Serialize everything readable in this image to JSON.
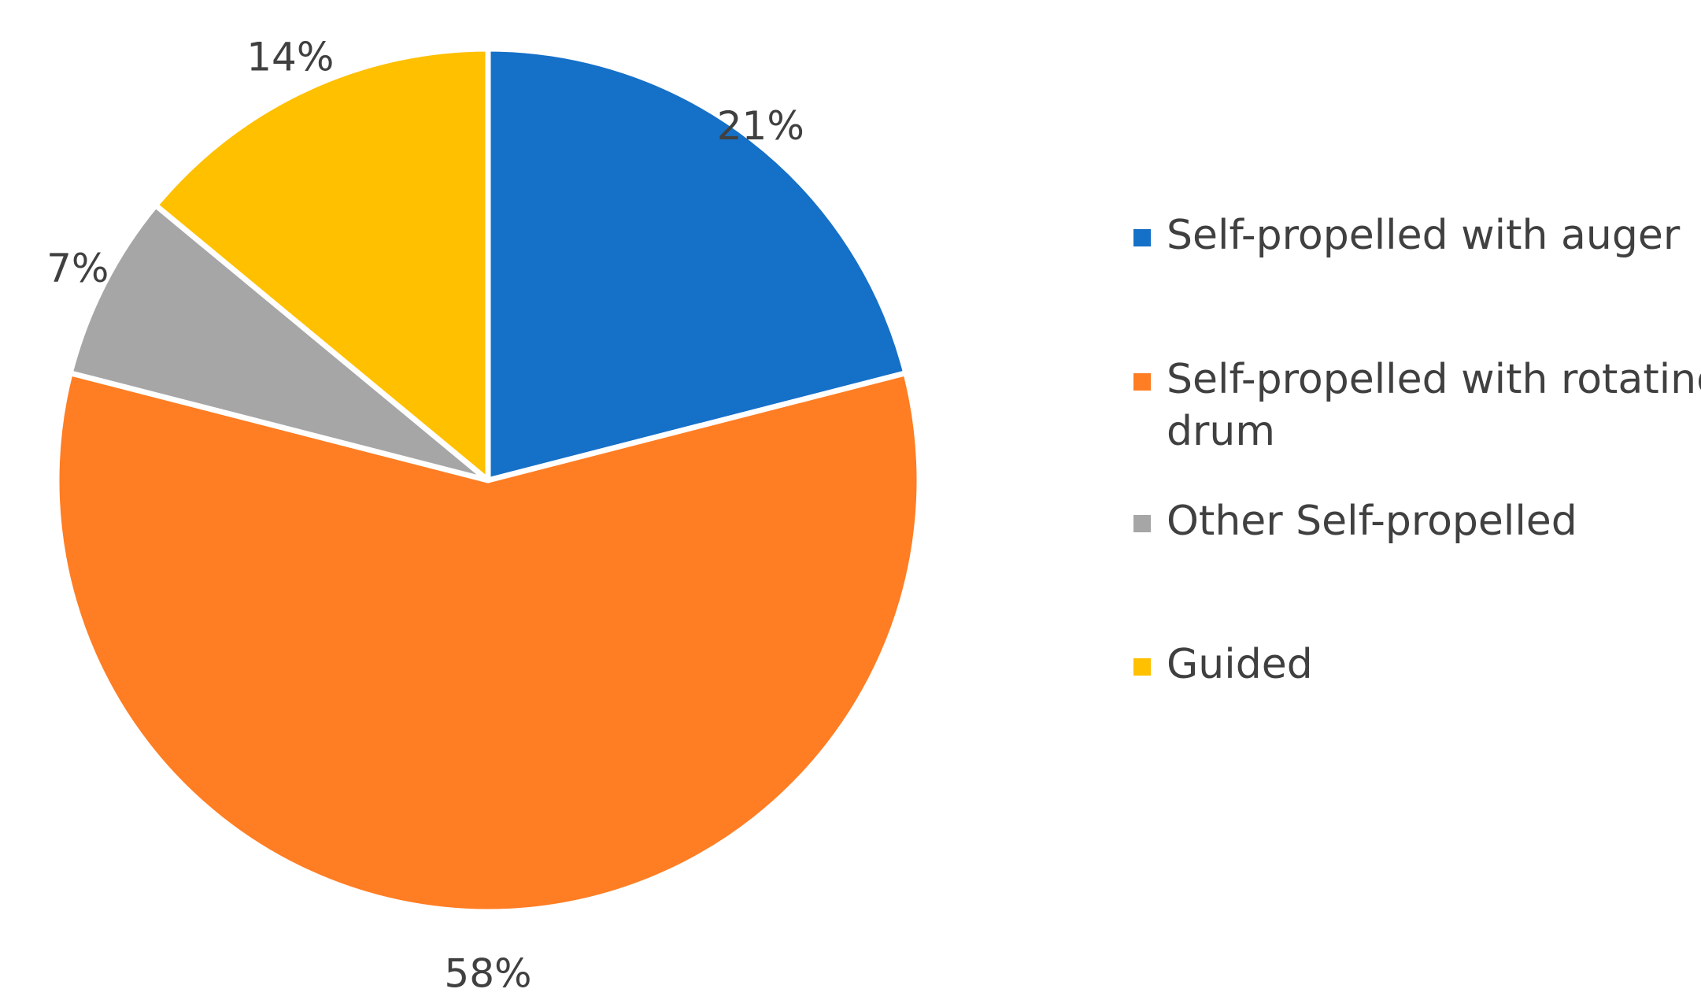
{
  "chart_data": {
    "type": "pie",
    "title": "",
    "series": [
      {
        "values": [
          21,
          58,
          7,
          14
        ],
        "labels": [
          "21%",
          "58%",
          "7%",
          "14%"
        ]
      }
    ],
    "categories": [
      "Self-propelled with auger",
      "Self-propelled with rotating drum",
      "Other Self-propelled",
      "Guided"
    ],
    "colors": [
      "#1570C8",
      "#FF7D23",
      "#A6A6A6",
      "#FFC000"
    ],
    "legend": {
      "position": "right",
      "items": [
        {
          "lines": [
            "Self-propelled with auger"
          ]
        },
        {
          "lines": [
            "Self-propelled with rotating",
            "drum"
          ]
        },
        {
          "lines": [
            "Other Self-propelled"
          ]
        },
        {
          "lines": [
            "Guided"
          ]
        }
      ]
    }
  }
}
